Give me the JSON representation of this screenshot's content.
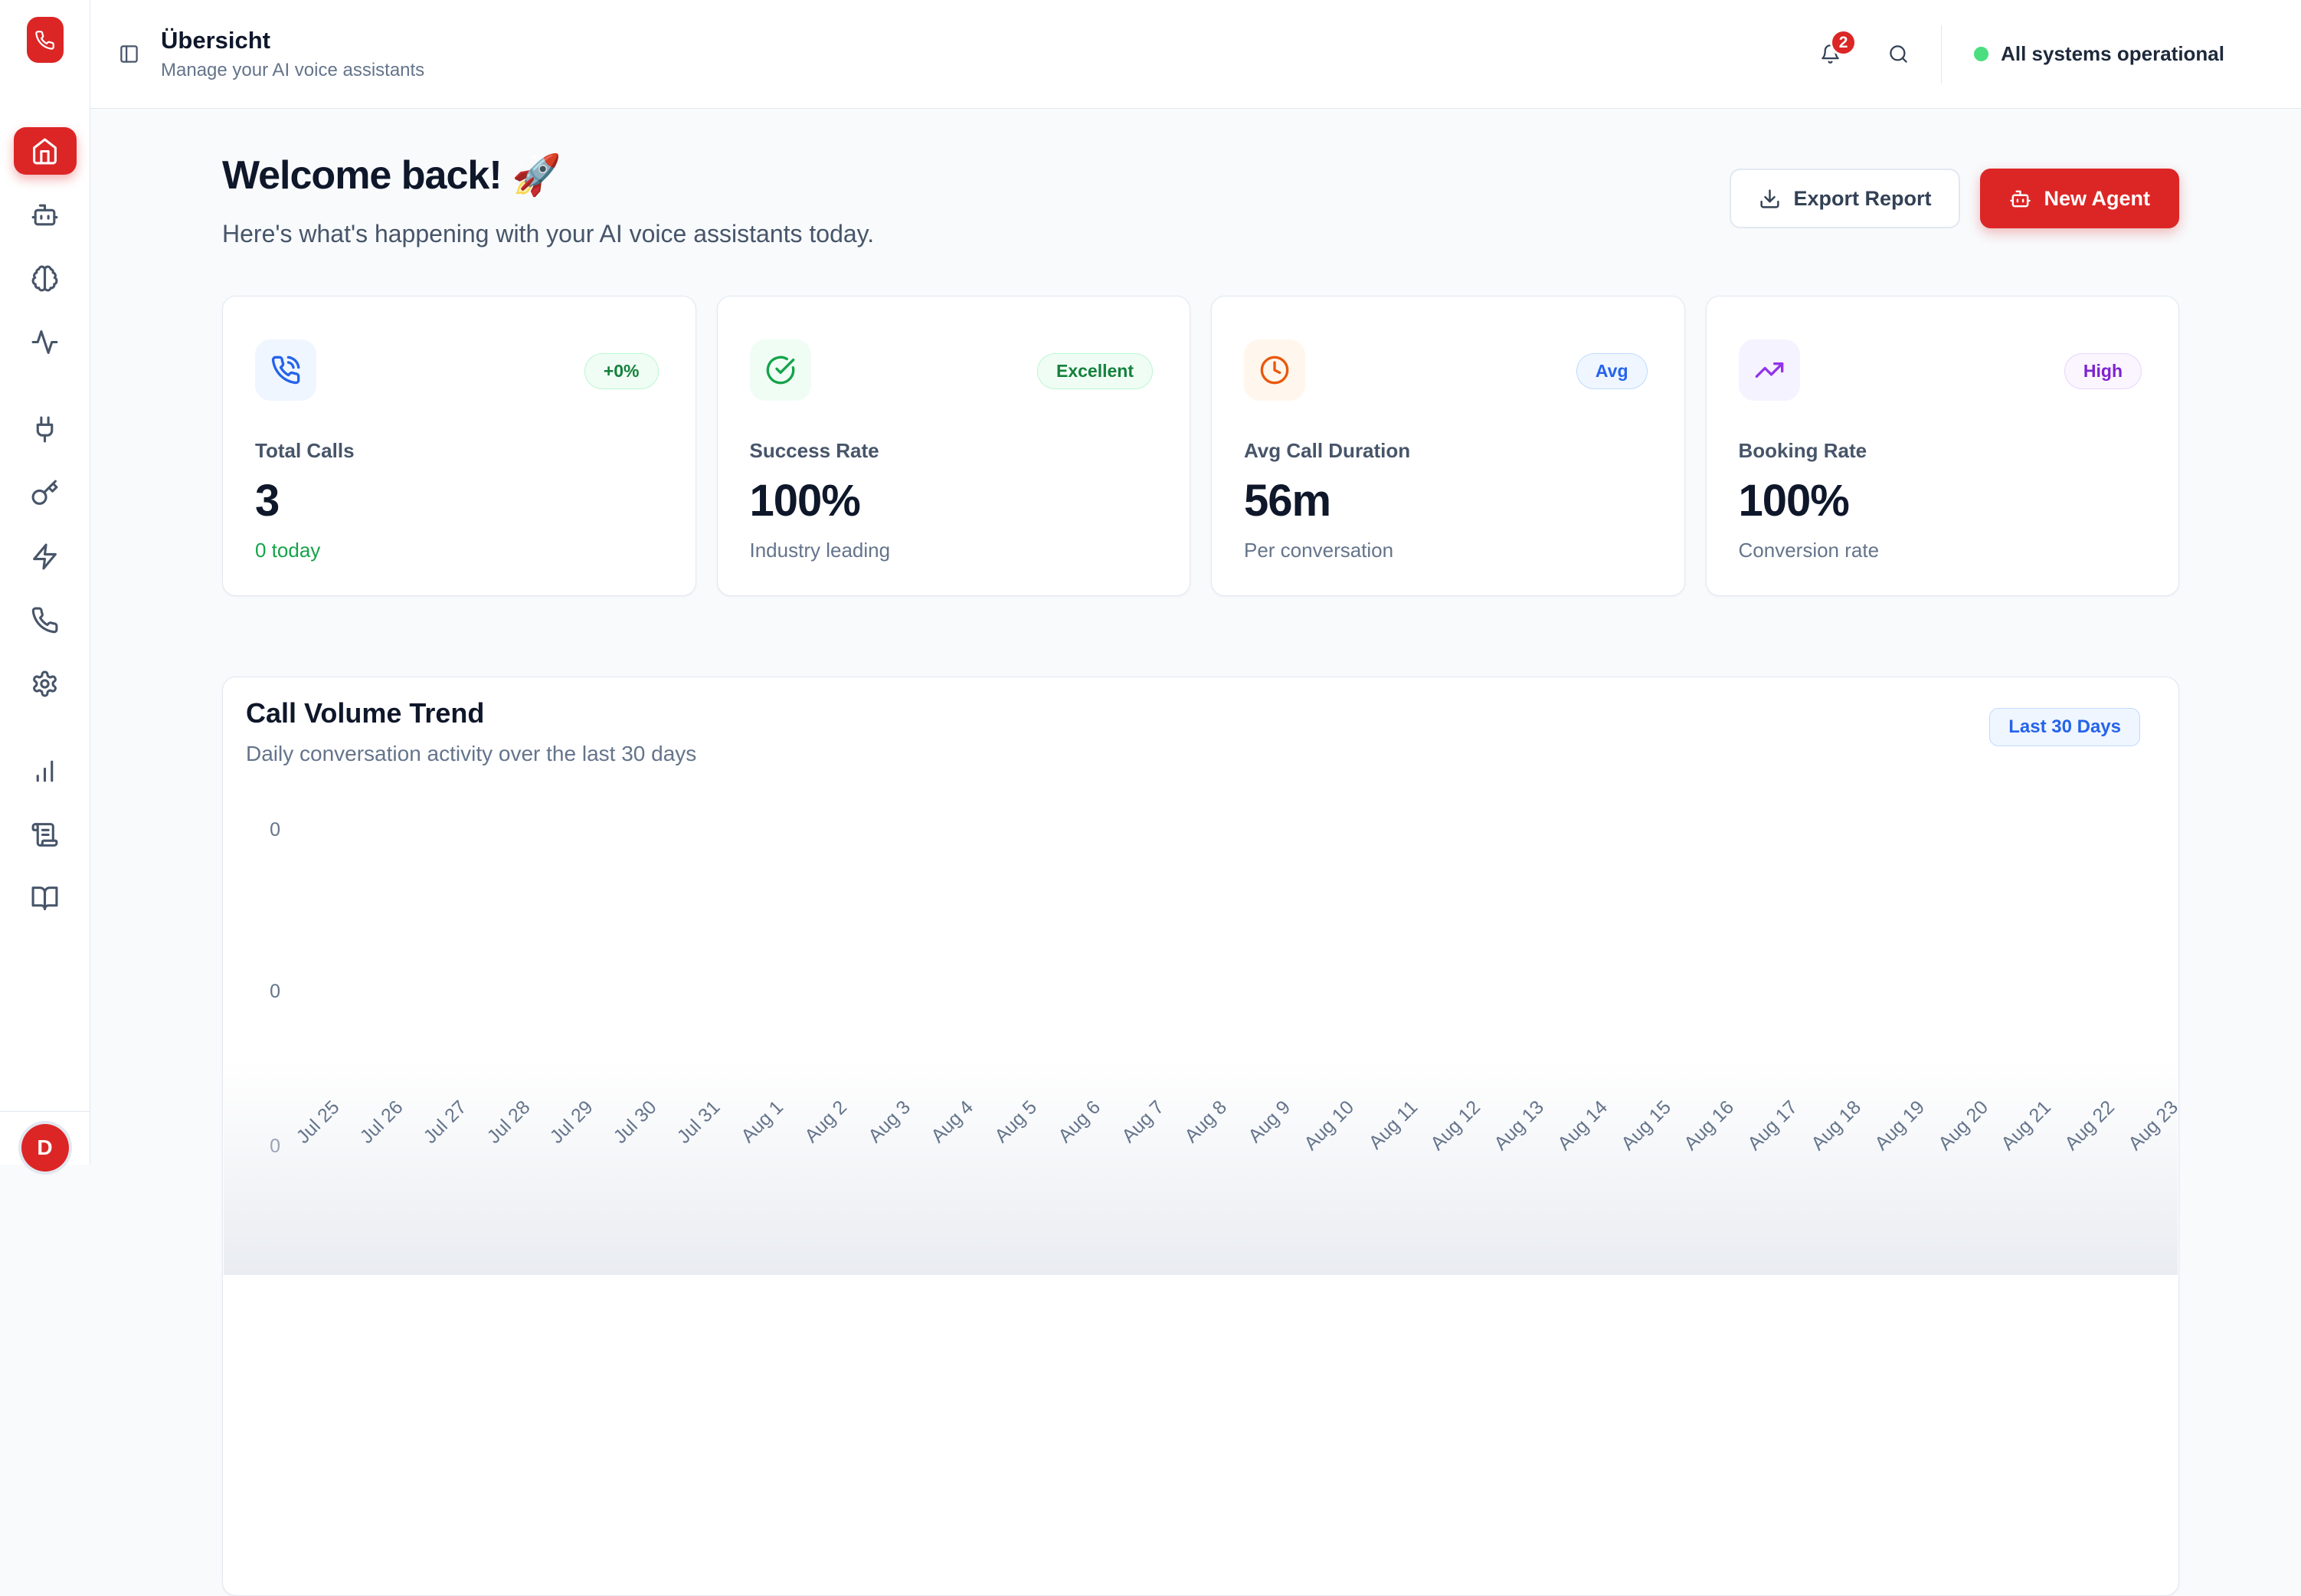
{
  "colors": {
    "accent_red": "#dc2626",
    "green": "#16a34a",
    "blue": "#2563eb",
    "orange": "#ea580c",
    "purple": "#9333ea",
    "status_green": "#4ade80",
    "border": "#e2e8f0",
    "page_bg": "#f8fafc"
  },
  "sidebar": {
    "logo_icon": "phone",
    "items": [
      {
        "icon": "home",
        "active": true
      },
      {
        "icon": "bot",
        "active": false
      },
      {
        "icon": "brain",
        "active": false
      },
      {
        "icon": "activity",
        "active": false
      },
      {
        "icon": "plug",
        "active": false
      },
      {
        "icon": "key",
        "active": false
      },
      {
        "icon": "zap",
        "active": false
      },
      {
        "icon": "phone",
        "active": false
      },
      {
        "icon": "settings",
        "active": false
      },
      {
        "icon": "bar-chart",
        "active": false
      },
      {
        "icon": "scroll-text",
        "active": false
      },
      {
        "icon": "book-open",
        "active": false
      }
    ],
    "avatar_initial": "D"
  },
  "header": {
    "title": "Übersicht",
    "subtitle": "Manage your AI voice assistants",
    "notification_count": "2",
    "status_text": "All systems operational"
  },
  "hero": {
    "title": "Welcome back!",
    "emoji": "🚀",
    "subtitle": "Here's what's happening with your AI voice assistants today.",
    "export_label": "Export Report",
    "new_agent_label": "New Agent"
  },
  "stats": [
    {
      "label": "Total Calls",
      "value": "3",
      "sub": "0 today",
      "badge": "+0%",
      "icon": "phone-call",
      "tile": "blue",
      "badge_style": "green",
      "sub_style": "green"
    },
    {
      "label": "Success Rate",
      "value": "100%",
      "sub": "Industry leading",
      "badge": "Excellent",
      "icon": "check-circle",
      "tile": "green",
      "badge_style": "green",
      "sub_style": "gray"
    },
    {
      "label": "Avg Call Duration",
      "value": "56m",
      "sub": "Per conversation",
      "badge": "Avg",
      "icon": "clock",
      "tile": "orange",
      "badge_style": "blue",
      "sub_style": "gray"
    },
    {
      "label": "Booking Rate",
      "value": "100%",
      "sub": "Conversion rate",
      "badge": "High",
      "icon": "trending-up",
      "tile": "purple",
      "badge_style": "purple",
      "sub_style": "gray"
    }
  ],
  "chart_card": {
    "title": "Call Volume Trend",
    "subtitle": "Daily conversation activity over the last 30 days",
    "range_badge": "Last 30 Days"
  },
  "chart_data": {
    "type": "area",
    "title": "Call Volume Trend",
    "x": [
      "Jul 25",
      "Jul 26",
      "Jul 27",
      "Jul 28",
      "Jul 29",
      "Jul 30",
      "Jul 31",
      "Aug 1",
      "Aug 2",
      "Aug 3",
      "Aug 4",
      "Aug 5",
      "Aug 6",
      "Aug 7",
      "Aug 8",
      "Aug 9",
      "Aug 10",
      "Aug 11",
      "Aug 12",
      "Aug 13",
      "Aug 14",
      "Aug 15",
      "Aug 16",
      "Aug 17",
      "Aug 18",
      "Aug 19",
      "Aug 20",
      "Aug 21",
      "Aug 22",
      "Aug 23"
    ],
    "values": [
      0,
      0,
      0,
      0,
      0,
      0,
      0,
      0,
      0,
      0,
      0,
      0,
      0,
      0,
      0,
      0,
      0,
      0,
      0,
      0,
      0,
      0,
      0,
      0,
      0,
      0,
      0,
      0,
      0,
      0
    ],
    "yticks": [
      "0",
      "0",
      "0"
    ],
    "ylim": [
      0,
      0
    ],
    "xlabel": "",
    "ylabel": "",
    "grid": false,
    "legend": false,
    "x_tick_rotation": -45
  }
}
